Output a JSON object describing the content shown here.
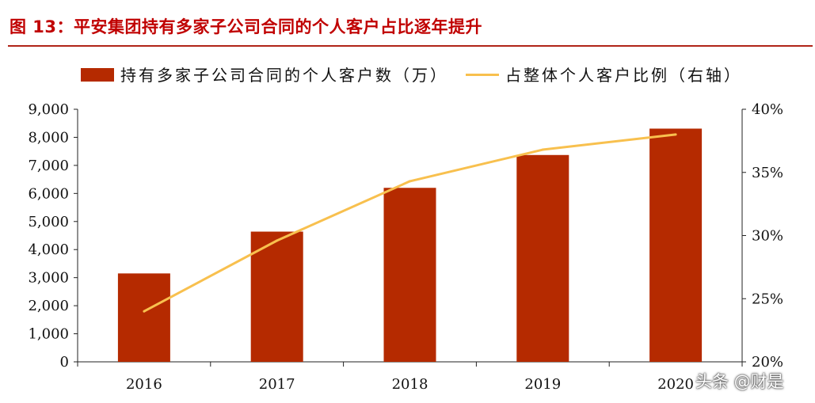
{
  "figure": {
    "title": "图  13：平安集团持有多家子公司合同的个人客户占比逐年提升",
    "watermark": "头条 @财是"
  },
  "colors": {
    "bar": "#b52a00",
    "line": "#f8c04e",
    "title": "#c00000"
  },
  "chart_data": {
    "type": "bar",
    "categories": [
      "2016",
      "2017",
      "2018",
      "2019",
      "2020"
    ],
    "series": [
      {
        "name": "持有多家子公司合同的个人客户数（万）",
        "type": "bar",
        "axis": "left",
        "values": [
          3150,
          4640,
          6200,
          7370,
          8310
        ]
      },
      {
        "name": "占整体个人客户比例（右轴）",
        "type": "line",
        "axis": "right",
        "values": [
          24.0,
          29.6,
          34.3,
          36.8,
          38.0
        ]
      }
    ],
    "y_left": {
      "lim": [
        0,
        9000
      ],
      "ticks": [
        0,
        1000,
        2000,
        3000,
        4000,
        5000,
        6000,
        7000,
        8000,
        9000
      ],
      "tick_labels": [
        "0",
        "1,000",
        "2,000",
        "3,000",
        "4,000",
        "5,000",
        "6,000",
        "7,000",
        "8,000",
        "9,000"
      ]
    },
    "y_right": {
      "lim": [
        20,
        40
      ],
      "ticks": [
        20,
        25,
        30,
        35,
        40
      ],
      "tick_labels": [
        "20%",
        "25%",
        "30%",
        "35%",
        "40%"
      ]
    },
    "legend_position": "top",
    "grid": false
  }
}
